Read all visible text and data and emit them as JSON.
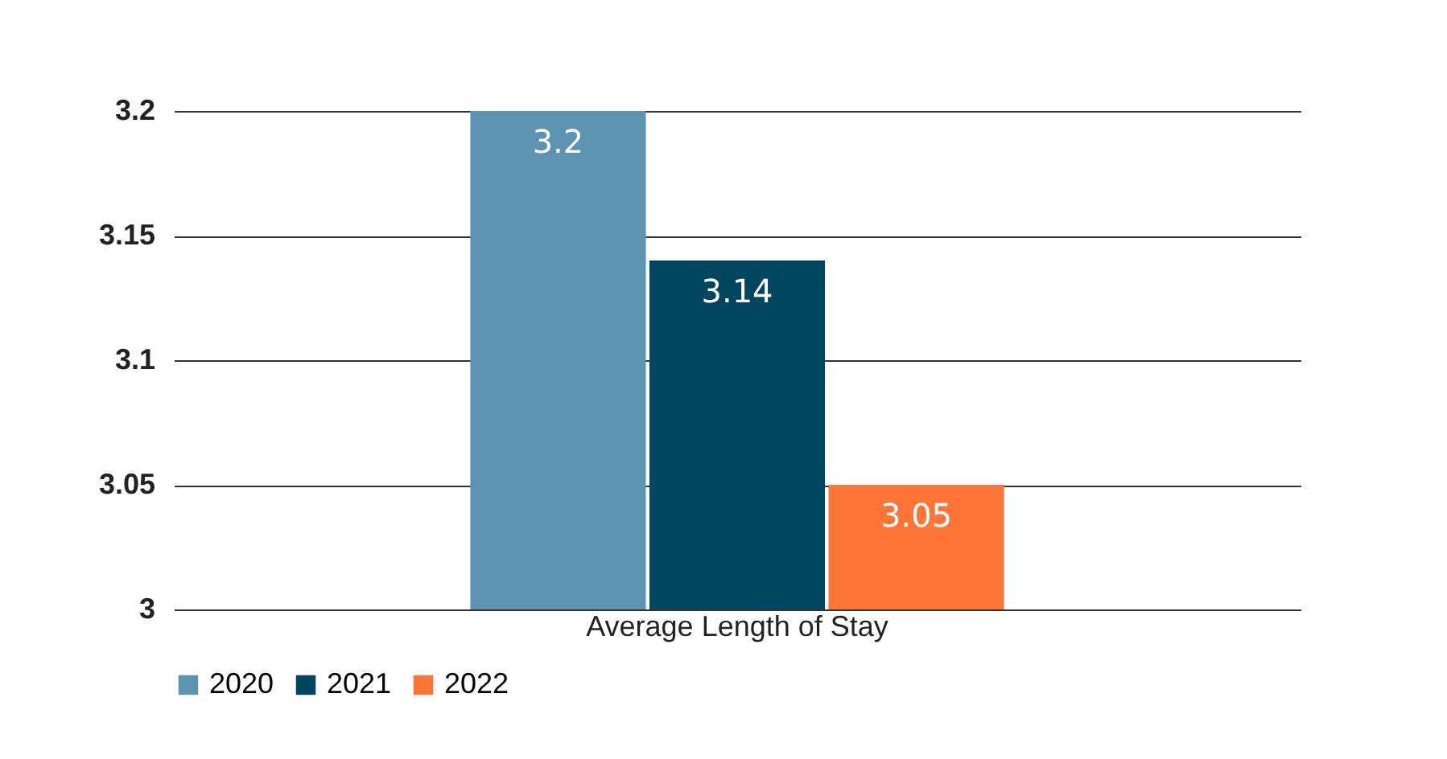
{
  "chart_data": {
    "type": "bar",
    "categories": [
      "Average Length of Stay"
    ],
    "series": [
      {
        "name": "2020",
        "color": "#5b93b0",
        "values": [
          3.2
        ]
      },
      {
        "name": "2021",
        "color": "#004560",
        "values": [
          3.14
        ]
      },
      {
        "name": "2022",
        "color": "#ff7538",
        "values": [
          3.05
        ]
      }
    ],
    "ylim": [
      3,
      3.2
    ],
    "yticks": [
      3,
      3.05,
      3.1,
      3.15,
      3.2
    ],
    "grid": "y",
    "legend": "bottom",
    "data_labels": true
  }
}
